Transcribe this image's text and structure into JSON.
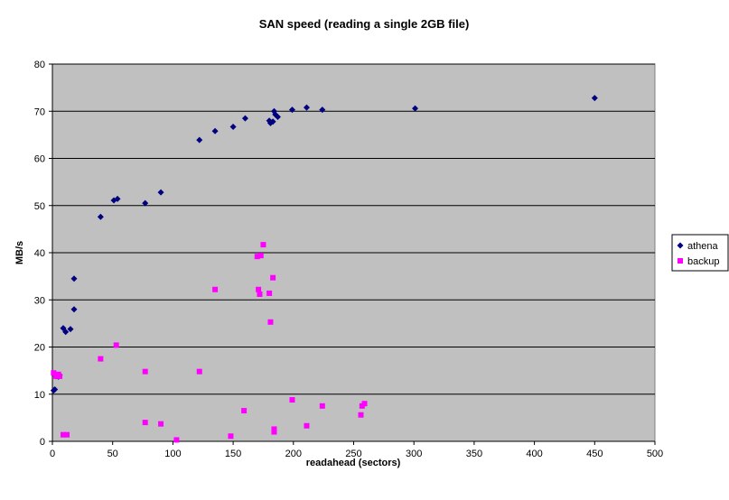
{
  "chart_data": {
    "type": "scatter",
    "title": "SAN speed (reading a single 2GB file)",
    "xlabel": "readahead (sectors)",
    "ylabel": "MB/s",
    "xlim": [
      0,
      500
    ],
    "ylim": [
      0,
      80
    ],
    "xticks": [
      0,
      50,
      100,
      150,
      200,
      250,
      300,
      350,
      400,
      450,
      500
    ],
    "yticks": [
      0,
      10,
      20,
      30,
      40,
      50,
      60,
      70,
      80
    ],
    "grid": "horizontal",
    "plot_background": "#C0C0C0",
    "legend_position": "right",
    "series": [
      {
        "name": "athena",
        "color": "#000080",
        "marker": "diamond",
        "points": [
          [
            1,
            10.8
          ],
          [
            2,
            11
          ],
          [
            3,
            13.8
          ],
          [
            5,
            13.7
          ],
          [
            6,
            14
          ],
          [
            9,
            24
          ],
          [
            11,
            23.2
          ],
          [
            15,
            23.8
          ],
          [
            18,
            28
          ],
          [
            18,
            34.5
          ],
          [
            40,
            47.6
          ],
          [
            51,
            51.1
          ],
          [
            54,
            51.4
          ],
          [
            77,
            50.5
          ],
          [
            90,
            52.8
          ],
          [
            122,
            63.9
          ],
          [
            135,
            65.8
          ],
          [
            150,
            66.7
          ],
          [
            160,
            68.5
          ],
          [
            180,
            68
          ],
          [
            181,
            67.5
          ],
          [
            183,
            67.8
          ],
          [
            184,
            70
          ],
          [
            185,
            69.3
          ],
          [
            187,
            68.8
          ],
          [
            199,
            70.3
          ],
          [
            211,
            70.8
          ],
          [
            224,
            70.3
          ],
          [
            301,
            70.6
          ],
          [
            450,
            72.8
          ]
        ]
      },
      {
        "name": "backup",
        "color": "#FF00FF",
        "marker": "square",
        "points": [
          [
            1,
            14.5
          ],
          [
            3,
            13.8
          ],
          [
            5,
            14.2
          ],
          [
            6,
            13.8
          ],
          [
            9,
            1.4
          ],
          [
            12,
            1.4
          ],
          [
            40,
            17.5
          ],
          [
            53,
            20.4
          ],
          [
            77,
            14.8
          ],
          [
            77,
            4
          ],
          [
            90,
            3.7
          ],
          [
            103,
            0.3
          ],
          [
            122,
            14.8
          ],
          [
            135,
            32.2
          ],
          [
            148,
            1.1
          ],
          [
            159,
            6.5
          ],
          [
            170,
            39.2
          ],
          [
            171,
            32.2
          ],
          [
            172,
            31.2
          ],
          [
            173,
            39.4
          ],
          [
            175,
            41.7
          ],
          [
            180,
            31.4
          ],
          [
            181,
            25.3
          ],
          [
            183,
            34.7
          ],
          [
            184,
            2.6
          ],
          [
            184,
            2
          ],
          [
            199,
            8.8
          ],
          [
            211,
            3.3
          ],
          [
            224,
            7.5
          ],
          [
            256,
            5.6
          ],
          [
            257,
            7.5
          ],
          [
            259,
            8
          ]
        ]
      }
    ]
  }
}
